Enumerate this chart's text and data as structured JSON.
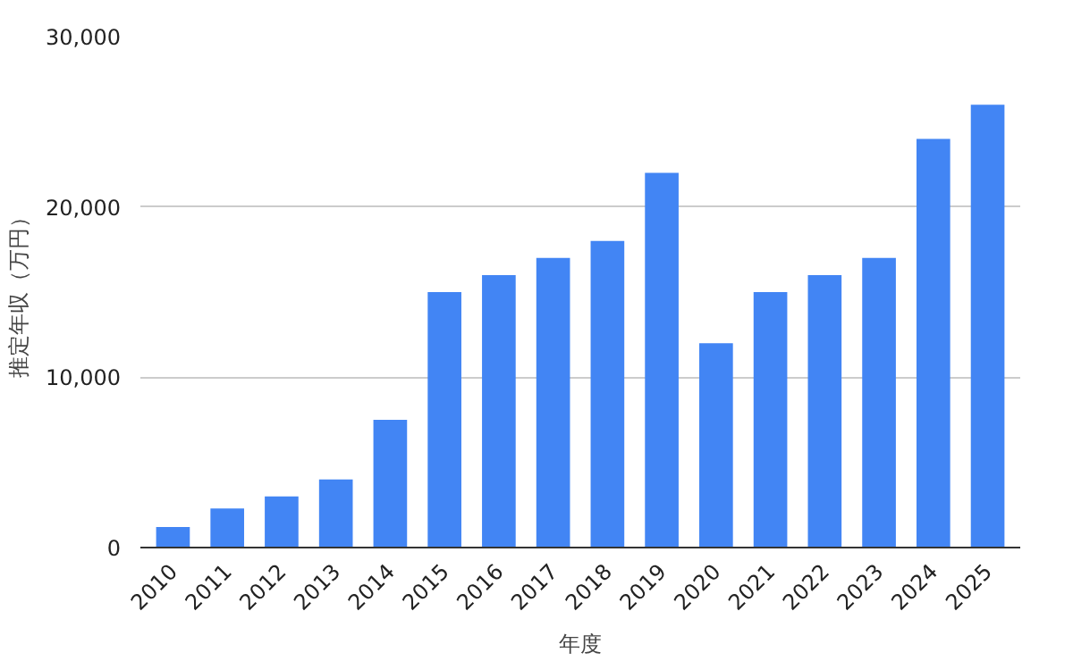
{
  "chart_data": {
    "type": "bar",
    "xlabel": "年度",
    "ylabel": "推定年収（万円）",
    "categories": [
      "2010",
      "2011",
      "2012",
      "2013",
      "2014",
      "2015",
      "2016",
      "2017",
      "2018",
      "2019",
      "2020",
      "2021",
      "2022",
      "2023",
      "2024",
      "2025"
    ],
    "values": [
      1200,
      2300,
      3000,
      4000,
      7500,
      15000,
      16000,
      17000,
      18000,
      22000,
      12000,
      15000,
      16000,
      17000,
      24000,
      26000
    ],
    "color": "#4285f4",
    "ylim": [
      0,
      30000
    ],
    "yticks": [
      {
        "value": 0,
        "label": "0"
      },
      {
        "value": 10000,
        "label": "10,000"
      },
      {
        "value": 20000,
        "label": "20,000"
      },
      {
        "value": 30000,
        "label": "30,000"
      }
    ],
    "grid": "y"
  }
}
